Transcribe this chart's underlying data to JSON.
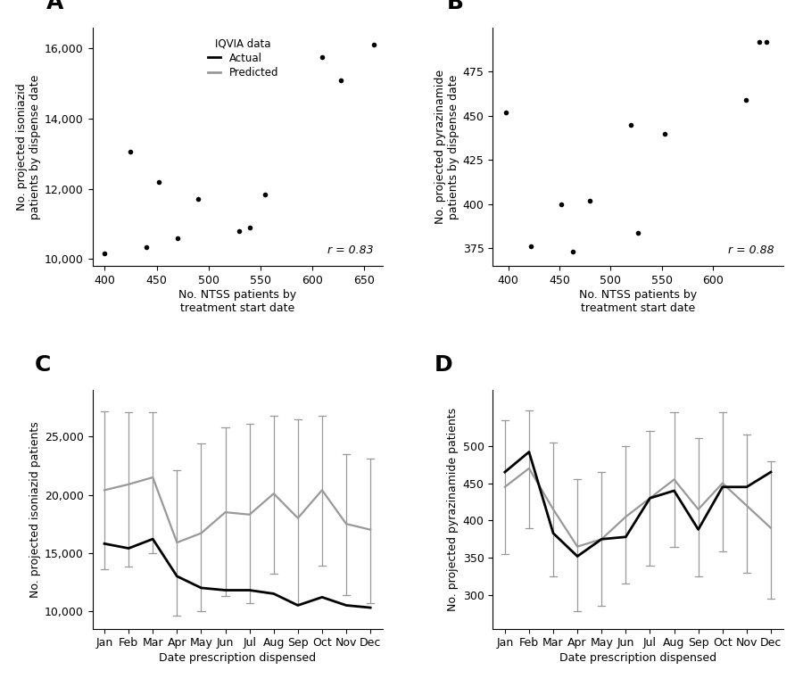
{
  "panel_A": {
    "ntss_x": [
      400,
      425,
      440,
      452,
      470,
      490,
      530,
      540,
      555,
      610,
      628,
      660
    ],
    "iqvia_y": [
      10150,
      13050,
      10350,
      12200,
      10600,
      11700,
      10800,
      10900,
      11850,
      15750,
      15100,
      16100
    ],
    "xlabel": "No. NTSS patients by\ntreatment start date",
    "ylabel": "No. projected isoniazid\npatients by dispense date",
    "xlim": [
      388,
      668
    ],
    "ylim": [
      9800,
      16600
    ],
    "yticks": [
      10000,
      12000,
      14000,
      16000
    ],
    "xticks": [
      400,
      450,
      500,
      550,
      600,
      650
    ],
    "r_text": "r = 0.83",
    "label": "A"
  },
  "panel_B": {
    "ntss_x": [
      398,
      422,
      452,
      463,
      480,
      520,
      527,
      553,
      632,
      645,
      652
    ],
    "iqvia_y": [
      452,
      376,
      400,
      373,
      402,
      445,
      384,
      440,
      459,
      492,
      492
    ],
    "xlabel": "No. NTSS patients by\ntreatment start date",
    "ylabel": "No. projected pyrazinamide\npatients by dispense date",
    "xlim": [
      385,
      668
    ],
    "ylim": [
      365,
      500
    ],
    "yticks": [
      375,
      400,
      425,
      450,
      475
    ],
    "xticks": [
      400,
      450,
      500,
      550,
      600
    ],
    "r_text": "r = 0.88",
    "label": "B"
  },
  "panel_C": {
    "months": [
      "Jan",
      "Feb",
      "Mar",
      "Apr",
      "May",
      "Jun",
      "Jul",
      "Aug",
      "Sep",
      "Oct",
      "Nov",
      "Dec"
    ],
    "actual": [
      15800,
      15400,
      16200,
      13000,
      12000,
      11800,
      11800,
      11500,
      10500,
      11200,
      10500,
      10300
    ],
    "predicted": [
      20400,
      20900,
      21500,
      15900,
      16700,
      18500,
      18300,
      20100,
      18000,
      20400,
      17500,
      17000
    ],
    "pred_upper": [
      27200,
      27100,
      27100,
      22100,
      24400,
      25800,
      26100,
      26800,
      26500,
      26800,
      23500,
      23100
    ],
    "pred_lower": [
      13600,
      13800,
      15000,
      9600,
      10000,
      11300,
      10700,
      13200,
      10600,
      13900,
      11400,
      10700
    ],
    "ylabel": "No. projected isoniazid patients",
    "xlabel": "Date prescription dispensed",
    "ylim": [
      8500,
      29000
    ],
    "yticks": [
      10000,
      15000,
      20000,
      25000
    ],
    "label": "C"
  },
  "panel_D": {
    "months": [
      "Jan",
      "Feb",
      "Mar",
      "Apr",
      "May",
      "Jun",
      "Jul",
      "Aug",
      "Sep",
      "Oct",
      "Nov",
      "Dec"
    ],
    "actual": [
      465,
      492,
      383,
      352,
      375,
      378,
      430,
      440,
      388,
      445,
      445,
      465
    ],
    "predicted": [
      445,
      470,
      415,
      365,
      375,
      405,
      430,
      455,
      415,
      450,
      420,
      390
    ],
    "pred_upper": [
      535,
      548,
      505,
      455,
      465,
      500,
      520,
      545,
      510,
      545,
      515,
      480
    ],
    "pred_lower": [
      355,
      390,
      325,
      278,
      285,
      315,
      340,
      365,
      325,
      358,
      330,
      295
    ],
    "ylabel": "No. projected pyrazinamide patients",
    "xlabel": "Date prescription dispensed",
    "ylim": [
      255,
      575
    ],
    "yticks": [
      300,
      350,
      400,
      450,
      500
    ],
    "label": "D"
  },
  "legend_title": "IQVIA data",
  "background_color": "#ffffff",
  "actual_color": "#000000",
  "predicted_color": "#999999",
  "dot_color": "#000000"
}
